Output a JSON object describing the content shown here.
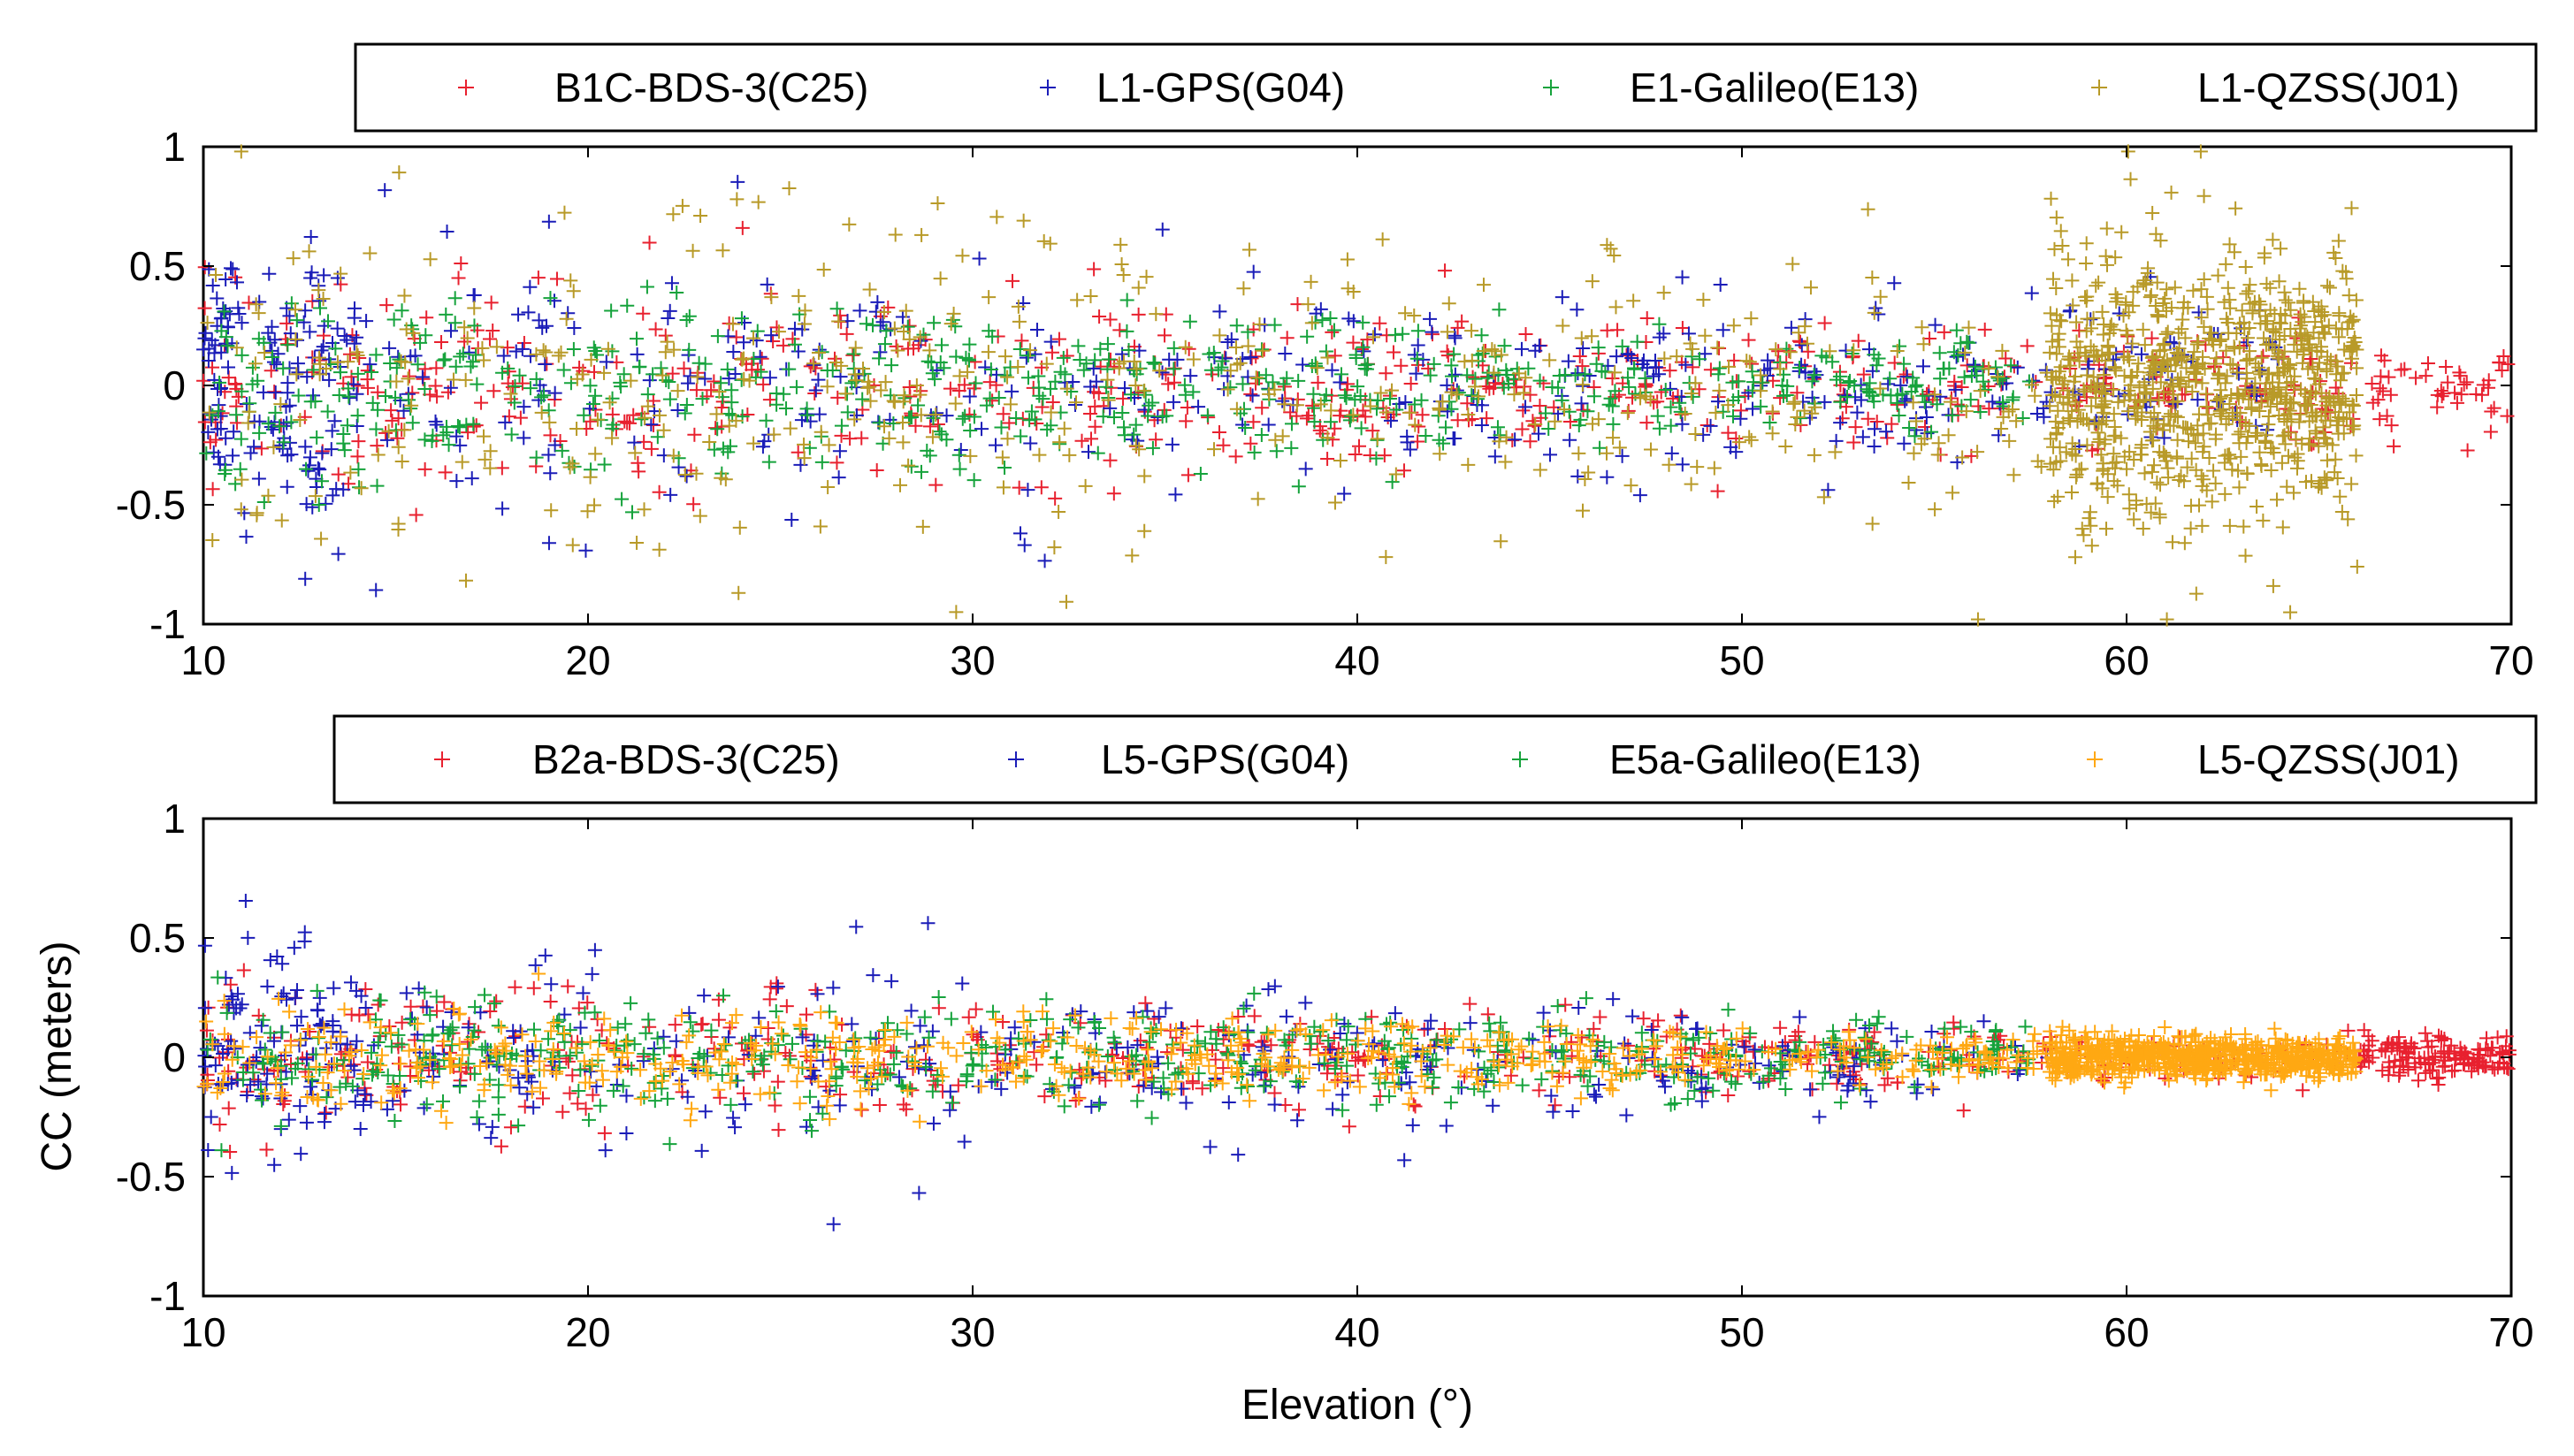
{
  "chart_data": [
    {
      "type": "scatter",
      "panel": "top",
      "title": "",
      "xlabel": "",
      "ylabel": "",
      "xlim": [
        10,
        70
      ],
      "ylim": [
        -1,
        1
      ],
      "xticks": [
        10,
        20,
        30,
        40,
        50,
        60,
        70
      ],
      "yticks": [
        1,
        0.5,
        0,
        -0.5,
        -1
      ],
      "xtick_labels": [
        "10",
        "20",
        "30",
        "40",
        "50",
        "60",
        "70"
      ],
      "ytick_labels": [
        "1",
        "0.5",
        "0",
        "-0.5",
        "-1"
      ],
      "legend_position": "top-right outside",
      "marker": "+",
      "series": [
        {
          "name": "B1C-BDS-3(C25)",
          "color": "#e8212f",
          "x_range": [
            10,
            70
          ],
          "spread_start": 0.32,
          "spread_end": 0.12,
          "seed": 11,
          "count": 620
        },
        {
          "name": "L1-GPS(G04)",
          "color": "#1b1db8",
          "x_range": [
            10,
            64
          ],
          "spread_start": 0.42,
          "spread_end": 0.14,
          "seed": 23,
          "count": 560
        },
        {
          "name": "E1-Galileo(E13)",
          "color": "#16a33c",
          "x_range": [
            10,
            57.5
          ],
          "spread_start": 0.28,
          "spread_end": 0.08,
          "seed": 37,
          "count": 600
        },
        {
          "name": "L1-QZSS(J01)",
          "color": "#b89a28",
          "x_range": [
            10,
            66
          ],
          "spread_start": 0.5,
          "spread_end": 0.25,
          "seed": 53,
          "count": 1300
        }
      ]
    },
    {
      "type": "scatter",
      "panel": "bottom",
      "title": "",
      "xlabel": "Elevation (°)",
      "ylabel": "CC (meters)",
      "xlim": [
        10,
        70
      ],
      "ylim": [
        -1,
        1
      ],
      "xticks": [
        10,
        20,
        30,
        40,
        50,
        60,
        70
      ],
      "yticks": [
        1,
        0.5,
        0,
        -0.5,
        -1
      ],
      "xtick_labels": [
        "10",
        "20",
        "30",
        "40",
        "50",
        "60",
        "70"
      ],
      "ytick_labels": [
        "1",
        "0.5",
        "0",
        "-0.5",
        "-1"
      ],
      "legend_position": "top-right outside",
      "marker": "+",
      "series": [
        {
          "name": "B2a-BDS-3(C25)",
          "color": "#e8212f",
          "x_range": [
            10,
            70
          ],
          "spread_start": 0.22,
          "spread_end": 0.05,
          "seed": 71,
          "count": 650
        },
        {
          "name": "L5-GPS(G04)",
          "color": "#1b1db8",
          "x_range": [
            10,
            58
          ],
          "spread_start": 0.32,
          "spread_end": 0.06,
          "seed": 89,
          "count": 420
        },
        {
          "name": "E5a-Galileo(E13)",
          "color": "#16a33c",
          "x_range": [
            10,
            57.5
          ],
          "spread_start": 0.18,
          "spread_end": 0.07,
          "seed": 97,
          "count": 560
        },
        {
          "name": "L5-QZSS(J01)",
          "color": "#ffa812",
          "x_range": [
            10,
            66
          ],
          "spread_start": 0.16,
          "spread_end": 0.04,
          "seed": 101,
          "count": 1300
        }
      ]
    }
  ]
}
